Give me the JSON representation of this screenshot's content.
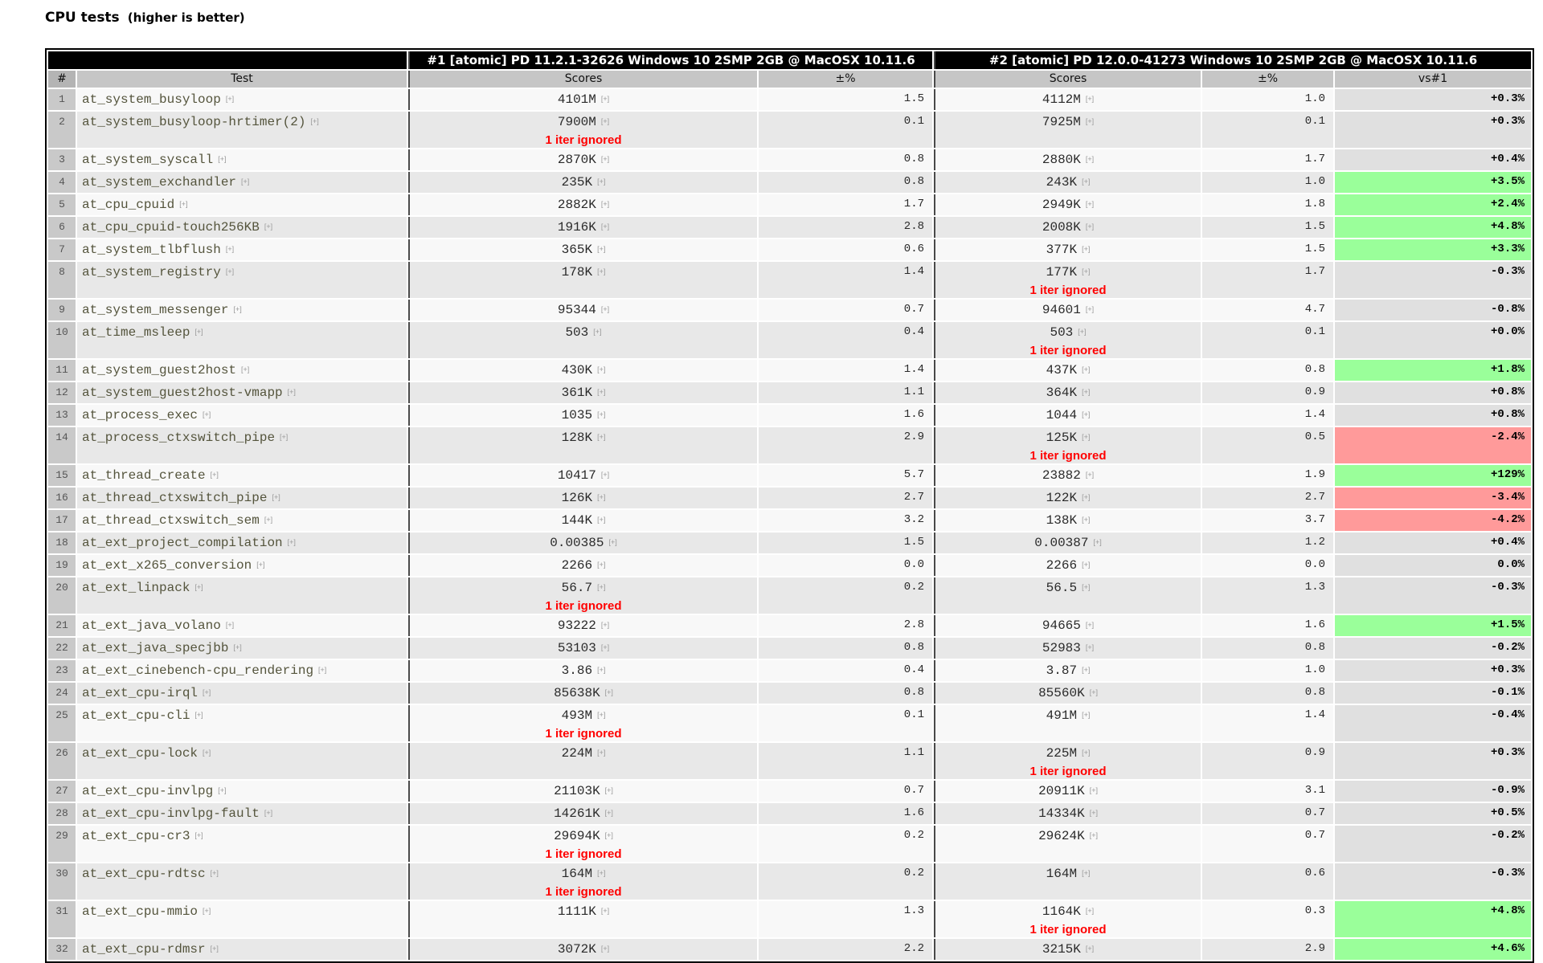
{
  "title": {
    "main": "CPU tests",
    "note": "(higher is better)"
  },
  "table": {
    "config_headers": [
      "#1 [atomic] PD 11.2.1-32626 Windows 10 2SMP 2GB @ MacOSX 10.11.6",
      "#2 [atomic] PD 12.0.0-41273 Windows 10 2SMP 2GB @ MacOSX 10.11.6"
    ],
    "columns": [
      "#",
      "Test",
      "Scores",
      "±%",
      "Scores",
      "±%",
      "vs#1"
    ],
    "expander": "[+]",
    "iter_note": "1 iter ignored",
    "colors": {
      "green": "#9aff9a",
      "red": "#ff9a9a",
      "neutral": "#e0e0e0"
    },
    "rows": [
      {
        "n": 1,
        "test": "at_system_busyloop",
        "s1": "4101M",
        "iter1": false,
        "p1": "1.5",
        "s2": "4112M",
        "iter2": false,
        "p2": "1.0",
        "vs": "+0.3%",
        "status": "neutral"
      },
      {
        "n": 2,
        "test": "at_system_busyloop-hrtimer(2)",
        "s1": "7900M",
        "iter1": true,
        "p1": "0.1",
        "s2": "7925M",
        "iter2": false,
        "p2": "0.1",
        "vs": "+0.3%",
        "status": "neutral"
      },
      {
        "n": 3,
        "test": "at_system_syscall",
        "s1": "2870K",
        "iter1": false,
        "p1": "0.8",
        "s2": "2880K",
        "iter2": false,
        "p2": "1.7",
        "vs": "+0.4%",
        "status": "neutral"
      },
      {
        "n": 4,
        "test": "at_system_exchandler",
        "s1": "235K",
        "iter1": false,
        "p1": "0.8",
        "s2": "243K",
        "iter2": false,
        "p2": "1.0",
        "vs": "+3.5%",
        "status": "green"
      },
      {
        "n": 5,
        "test": "at_cpu_cpuid",
        "s1": "2882K",
        "iter1": false,
        "p1": "1.7",
        "s2": "2949K",
        "iter2": false,
        "p2": "1.8",
        "vs": "+2.4%",
        "status": "green"
      },
      {
        "n": 6,
        "test": "at_cpu_cpuid-touch256KB",
        "s1": "1916K",
        "iter1": false,
        "p1": "2.8",
        "s2": "2008K",
        "iter2": false,
        "p2": "1.5",
        "vs": "+4.8%",
        "status": "green"
      },
      {
        "n": 7,
        "test": "at_system_tlbflush",
        "s1": "365K",
        "iter1": false,
        "p1": "0.6",
        "s2": "377K",
        "iter2": false,
        "p2": "1.5",
        "vs": "+3.3%",
        "status": "green"
      },
      {
        "n": 8,
        "test": "at_system_registry",
        "s1": "178K",
        "iter1": false,
        "p1": "1.4",
        "s2": "177K",
        "iter2": true,
        "p2": "1.7",
        "vs": "-0.3%",
        "status": "neutral"
      },
      {
        "n": 9,
        "test": "at_system_messenger",
        "s1": "95344",
        "iter1": false,
        "p1": "0.7",
        "s2": "94601",
        "iter2": false,
        "p2": "4.7",
        "vs": "-0.8%",
        "status": "neutral"
      },
      {
        "n": 10,
        "test": "at_time_msleep",
        "s1": "503",
        "iter1": false,
        "p1": "0.4",
        "s2": "503",
        "iter2": true,
        "p2": "0.1",
        "vs": "+0.0%",
        "status": "neutral"
      },
      {
        "n": 11,
        "test": "at_system_guest2host",
        "s1": "430K",
        "iter1": false,
        "p1": "1.4",
        "s2": "437K",
        "iter2": false,
        "p2": "0.8",
        "vs": "+1.8%",
        "status": "green"
      },
      {
        "n": 12,
        "test": "at_system_guest2host-vmapp",
        "s1": "361K",
        "iter1": false,
        "p1": "1.1",
        "s2": "364K",
        "iter2": false,
        "p2": "0.9",
        "vs": "+0.8%",
        "status": "neutral"
      },
      {
        "n": 13,
        "test": "at_process_exec",
        "s1": "1035",
        "iter1": false,
        "p1": "1.6",
        "s2": "1044",
        "iter2": false,
        "p2": "1.4",
        "vs": "+0.8%",
        "status": "neutral"
      },
      {
        "n": 14,
        "test": "at_process_ctxswitch_pipe",
        "s1": "128K",
        "iter1": false,
        "p1": "2.9",
        "s2": "125K",
        "iter2": true,
        "p2": "0.5",
        "vs": "-2.4%",
        "status": "red"
      },
      {
        "n": 15,
        "test": "at_thread_create",
        "s1": "10417",
        "iter1": false,
        "p1": "5.7",
        "s2": "23882",
        "iter2": false,
        "p2": "1.9",
        "vs": "+129%",
        "status": "green"
      },
      {
        "n": 16,
        "test": "at_thread_ctxswitch_pipe",
        "s1": "126K",
        "iter1": false,
        "p1": "2.7",
        "s2": "122K",
        "iter2": false,
        "p2": "2.7",
        "vs": "-3.4%",
        "status": "red"
      },
      {
        "n": 17,
        "test": "at_thread_ctxswitch_sem",
        "s1": "144K",
        "iter1": false,
        "p1": "3.2",
        "s2": "138K",
        "iter2": false,
        "p2": "3.7",
        "vs": "-4.2%",
        "status": "red"
      },
      {
        "n": 18,
        "test": "at_ext_project_compilation",
        "s1": "0.00385",
        "iter1": false,
        "p1": "1.5",
        "s2": "0.00387",
        "iter2": false,
        "p2": "1.2",
        "vs": "+0.4%",
        "status": "neutral"
      },
      {
        "n": 19,
        "test": "at_ext_x265_conversion",
        "s1": "2266",
        "iter1": false,
        "p1": "0.0",
        "s2": "2266",
        "iter2": false,
        "p2": "0.0",
        "vs": "0.0%",
        "status": "neutral"
      },
      {
        "n": 20,
        "test": "at_ext_linpack",
        "s1": "56.7",
        "iter1": true,
        "p1": "0.2",
        "s2": "56.5",
        "iter2": false,
        "p2": "1.3",
        "vs": "-0.3%",
        "status": "neutral"
      },
      {
        "n": 21,
        "test": "at_ext_java_volano",
        "s1": "93222",
        "iter1": false,
        "p1": "2.8",
        "s2": "94665",
        "iter2": false,
        "p2": "1.6",
        "vs": "+1.5%",
        "status": "green"
      },
      {
        "n": 22,
        "test": "at_ext_java_specjbb",
        "s1": "53103",
        "iter1": false,
        "p1": "0.8",
        "s2": "52983",
        "iter2": false,
        "p2": "0.8",
        "vs": "-0.2%",
        "status": "neutral"
      },
      {
        "n": 23,
        "test": "at_ext_cinebench-cpu_rendering",
        "s1": "3.86",
        "iter1": false,
        "p1": "0.4",
        "s2": "3.87",
        "iter2": false,
        "p2": "1.0",
        "vs": "+0.3%",
        "status": "neutral"
      },
      {
        "n": 24,
        "test": "at_ext_cpu-irql",
        "s1": "85638K",
        "iter1": false,
        "p1": "0.8",
        "s2": "85560K",
        "iter2": false,
        "p2": "0.8",
        "vs": "-0.1%",
        "status": "neutral"
      },
      {
        "n": 25,
        "test": "at_ext_cpu-cli",
        "s1": "493M",
        "iter1": true,
        "p1": "0.1",
        "s2": "491M",
        "iter2": false,
        "p2": "1.4",
        "vs": "-0.4%",
        "status": "neutral"
      },
      {
        "n": 26,
        "test": "at_ext_cpu-lock",
        "s1": "224M",
        "iter1": false,
        "p1": "1.1",
        "s2": "225M",
        "iter2": true,
        "p2": "0.9",
        "vs": "+0.3%",
        "status": "neutral"
      },
      {
        "n": 27,
        "test": "at_ext_cpu-invlpg",
        "s1": "21103K",
        "iter1": false,
        "p1": "0.7",
        "s2": "20911K",
        "iter2": false,
        "p2": "3.1",
        "vs": "-0.9%",
        "status": "neutral"
      },
      {
        "n": 28,
        "test": "at_ext_cpu-invlpg-fault",
        "s1": "14261K",
        "iter1": false,
        "p1": "1.6",
        "s2": "14334K",
        "iter2": false,
        "p2": "0.7",
        "vs": "+0.5%",
        "status": "neutral"
      },
      {
        "n": 29,
        "test": "at_ext_cpu-cr3",
        "s1": "29694K",
        "iter1": true,
        "p1": "0.2",
        "s2": "29624K",
        "iter2": false,
        "p2": "0.7",
        "vs": "-0.2%",
        "status": "neutral"
      },
      {
        "n": 30,
        "test": "at_ext_cpu-rdtsc",
        "s1": "164M",
        "iter1": true,
        "p1": "0.2",
        "s2": "164M",
        "iter2": false,
        "p2": "0.6",
        "vs": "-0.3%",
        "status": "neutral"
      },
      {
        "n": 31,
        "test": "at_ext_cpu-mmio",
        "s1": "1111K",
        "iter1": false,
        "p1": "1.3",
        "s2": "1164K",
        "iter2": true,
        "p2": "0.3",
        "vs": "+4.8%",
        "status": "green"
      },
      {
        "n": 32,
        "test": "at_ext_cpu-rdmsr",
        "s1": "3072K",
        "iter1": false,
        "p1": "2.2",
        "s2": "3215K",
        "iter2": false,
        "p2": "2.9",
        "vs": "+4.6%",
        "status": "green"
      }
    ]
  }
}
